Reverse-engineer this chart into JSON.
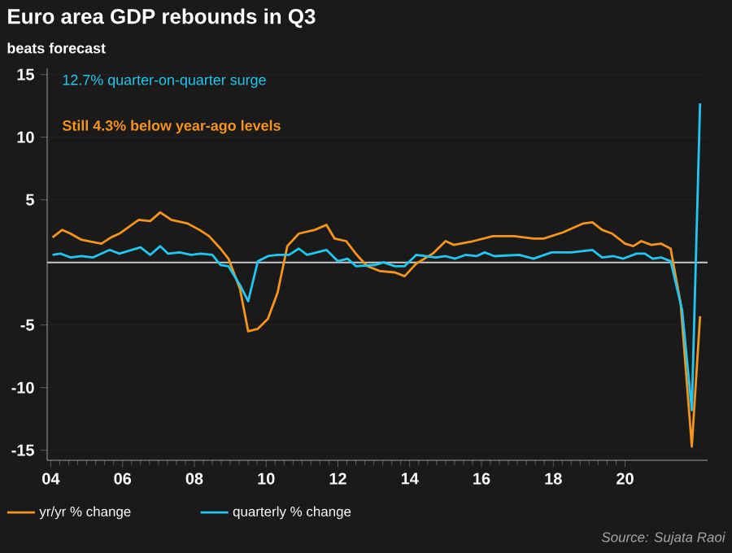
{
  "chart_data": {
    "type": "line",
    "title": "Euro area GDP rebounds in Q3",
    "subtitle": "beats forecast",
    "annotations": [
      "12.7% quarter-on-quarter surge",
      "Still 4.3% below year-ago levels",
      "Source: Sujata Raoi"
    ],
    "series": [
      {
        "name": "yr/yr % change",
        "color": "#f7941d",
        "x": [
          2004.05,
          2004.32,
          2004.55,
          2004.86,
          2005.41,
          2005.68,
          2005.91,
          2006.45,
          2006.77,
          2007.05,
          2007.36,
          2007.82,
          2008.14,
          2008.41,
          2008.73,
          2008.95,
          2009.27,
          2009.5,
          2009.77,
          2010.05,
          2010.32,
          2010.59,
          2010.91,
          2011.36,
          2011.68,
          2011.91,
          2012.23,
          2012.5,
          2012.59,
          2012.82,
          2013.18,
          2013.59,
          2013.86,
          2014.18,
          2014.64,
          2015,
          2015.23,
          2015.77,
          2016.32,
          2016.91,
          2017.45,
          2017.73,
          2018.27,
          2018.82,
          2019.09,
          2019.36,
          2019.64,
          2020,
          2020.23,
          2020.45,
          2020.73,
          2021,
          2021.27,
          2021.55,
          2021.86,
          2022.09
        ],
        "values": [
          2.0,
          2.6,
          2.3,
          1.8,
          1.5,
          2.0,
          2.3,
          3.4,
          3.3,
          4.0,
          3.4,
          3.1,
          2.6,
          2.1,
          1.1,
          0.3,
          -2.1,
          -5.5,
          -5.3,
          -4.5,
          -2.4,
          1.3,
          2.3,
          2.6,
          3.0,
          1.9,
          1.7,
          0.7,
          0.4,
          -0.3,
          -0.7,
          -0.8,
          -1.1,
          -0.1,
          0.7,
          1.7,
          1.4,
          1.7,
          2.1,
          2.1,
          1.9,
          1.9,
          2.4,
          3.1,
          3.2,
          2.6,
          2.3,
          1.5,
          1.3,
          1.7,
          1.4,
          1.5,
          1.1,
          -3.3,
          -14.7,
          -4.3
        ]
      },
      {
        "name": "quarterly % change",
        "color": "#1ec8f0",
        "x": [
          2004.05,
          2004.27,
          2004.55,
          2004.86,
          2005.18,
          2005.64,
          2005.91,
          2006.5,
          2006.77,
          2007.05,
          2007.27,
          2007.59,
          2007.91,
          2008.18,
          2008.5,
          2008.73,
          2008.95,
          2009.27,
          2009.5,
          2009.77,
          2010.05,
          2010.32,
          2010.64,
          2010.91,
          2011.14,
          2011.68,
          2012.0,
          2012.27,
          2012.5,
          2013.05,
          2013.27,
          2013.59,
          2013.86,
          2014.18,
          2014.73,
          2015.0,
          2015.27,
          2015.55,
          2015.86,
          2016.09,
          2016.36,
          2017.05,
          2017.45,
          2017.95,
          2018.5,
          2019.09,
          2019.36,
          2019.68,
          2019.95,
          2020.32,
          2020.55,
          2020.77,
          2021.0,
          2021.27,
          2021.59,
          2021.86,
          2022.09
        ],
        "values": [
          0.6,
          0.7,
          0.4,
          0.5,
          0.4,
          1.0,
          0.7,
          1.2,
          0.6,
          1.3,
          0.7,
          0.8,
          0.6,
          0.7,
          0.6,
          -0.2,
          -0.3,
          -1.8,
          -3.1,
          0.1,
          0.5,
          0.6,
          0.6,
          1.1,
          0.6,
          1.0,
          0.1,
          0.3,
          -0.3,
          -0.2,
          0.0,
          -0.3,
          -0.3,
          0.6,
          0.4,
          0.5,
          0.3,
          0.6,
          0.5,
          0.8,
          0.5,
          0.6,
          0.3,
          0.8,
          0.8,
          1.0,
          0.4,
          0.5,
          0.3,
          0.7,
          0.7,
          0.3,
          0.4,
          0.1,
          -3.8,
          -11.8,
          12.7
        ]
      }
    ],
    "xlim": [
      2003.9,
      2022.3
    ],
    "xticks": [
      {
        "value": 2004,
        "label": "04"
      },
      {
        "value": 2006,
        "label": "06"
      },
      {
        "value": 2008,
        "label": "08"
      },
      {
        "value": 2010,
        "label": "10"
      },
      {
        "value": 2012,
        "label": "12"
      },
      {
        "value": 2014,
        "label": "14"
      },
      {
        "value": 2016,
        "label": "16"
      },
      {
        "value": 2018,
        "label": "18"
      },
      {
        "value": 2020,
        "label": "20"
      }
    ],
    "ylim": [
      -15.8,
      15.5
    ],
    "yticks": [
      -15,
      -10,
      -5,
      5,
      10,
      15
    ],
    "ref_lines": [
      {
        "axis": "y",
        "value": 0,
        "color": "#c8c8c8"
      }
    ],
    "grid": "y",
    "legend": "bottom",
    "line_style": "solid",
    "marker": "none"
  }
}
